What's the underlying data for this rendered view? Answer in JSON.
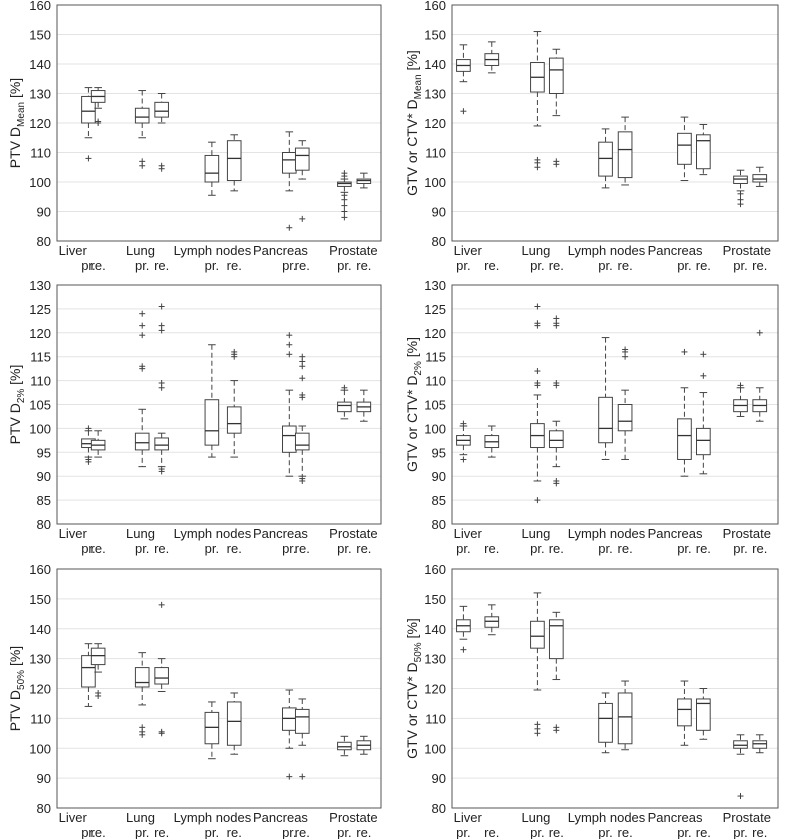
{
  "chart_data": [
    {
      "type": "box",
      "ylabel_main": "PTV D",
      "ylabel_sub": "Mean",
      "ylabel_tail": " [%]",
      "ylim": [
        80,
        160
      ],
      "yticks": [
        80,
        90,
        100,
        110,
        120,
        130,
        140,
        150,
        160
      ],
      "groups": [
        "Liver",
        "Lung",
        "Lymph nodes",
        "Pancreas",
        "Prostate"
      ],
      "sublabels": [
        "pr.",
        "re."
      ],
      "boxes": [
        {
          "group": "Liver",
          "sub": "pr.",
          "whisker_low": 115,
          "q1": 120,
          "median": 124,
          "q3": 129,
          "whisker_high": 132,
          "outliers": [
            108
          ]
        },
        {
          "group": "Liver",
          "sub": "re.",
          "whisker_low": 125,
          "q1": 127,
          "median": 129,
          "q3": 131,
          "whisker_high": 132,
          "outliers": [
            120.5,
            120
          ]
        },
        {
          "group": "Lung",
          "sub": "pr.",
          "whisker_low": 115,
          "q1": 120,
          "median": 122,
          "q3": 125,
          "whisker_high": 131,
          "outliers": [
            107,
            105.5
          ]
        },
        {
          "group": "Lung",
          "sub": "re.",
          "whisker_low": 120,
          "q1": 122,
          "median": 124,
          "q3": 127,
          "whisker_high": 130,
          "outliers": [
            105.5,
            104.5
          ]
        },
        {
          "group": "Lymph nodes",
          "sub": "pr.",
          "whisker_low": 95.5,
          "q1": 100,
          "median": 103,
          "q3": 109,
          "whisker_high": 113.5,
          "outliers": []
        },
        {
          "group": "Lymph nodes",
          "sub": "re.",
          "whisker_low": 97,
          "q1": 100.5,
          "median": 108,
          "q3": 114,
          "whisker_high": 116,
          "outliers": []
        },
        {
          "group": "Pancreas",
          "sub": "pr.",
          "whisker_low": 97,
          "q1": 103,
          "median": 107.5,
          "q3": 110,
          "whisker_high": 117,
          "outliers": [
            84.5
          ]
        },
        {
          "group": "Pancreas",
          "sub": "re.",
          "whisker_low": 101,
          "q1": 104,
          "median": 109,
          "q3": 111.5,
          "whisker_high": 114,
          "outliers": [
            87.5
          ]
        },
        {
          "group": "Prostate",
          "sub": "pr.",
          "whisker_low": 96.5,
          "q1": 98.5,
          "median": 99.5,
          "q3": 100,
          "whisker_high": 101,
          "outliers": [
            103,
            102,
            95.5,
            94,
            92,
            90,
            88
          ]
        },
        {
          "group": "Prostate",
          "sub": "re.",
          "whisker_low": 98,
          "q1": 99.5,
          "median": 100.5,
          "q3": 101,
          "whisker_high": 103,
          "outliers": []
        }
      ]
    },
    {
      "type": "box",
      "ylabel_main": "GTV or CTV* D",
      "ylabel_sub": "Mean",
      "ylabel_tail": " [%]",
      "ylim": [
        80,
        160
      ],
      "yticks": [
        80,
        90,
        100,
        110,
        120,
        130,
        140,
        150,
        160
      ],
      "groups": [
        "Liver",
        "Lung",
        "Lymph nodes",
        "Pancreas",
        "Prostate"
      ],
      "sublabels": [
        "pr.",
        "re."
      ],
      "boxes": [
        {
          "group": "Liver",
          "sub": "pr.",
          "whisker_low": 134,
          "q1": 137.5,
          "median": 139.5,
          "q3": 141.5,
          "whisker_high": 146.5,
          "outliers": [
            124
          ]
        },
        {
          "group": "Liver",
          "sub": "re.",
          "whisker_low": 137,
          "q1": 139.5,
          "median": 141.5,
          "q3": 143.5,
          "whisker_high": 147.5,
          "outliers": []
        },
        {
          "group": "Lung",
          "sub": "pr.",
          "whisker_low": 119,
          "q1": 130.5,
          "median": 135.5,
          "q3": 140.5,
          "whisker_high": 151,
          "outliers": [
            107.5,
            106.5,
            105
          ]
        },
        {
          "group": "Lung",
          "sub": "re.",
          "whisker_low": 122.5,
          "q1": 130,
          "median": 138,
          "q3": 142,
          "whisker_high": 145,
          "outliers": [
            107,
            106
          ]
        },
        {
          "group": "Lymph nodes",
          "sub": "pr.",
          "whisker_low": 98,
          "q1": 102,
          "median": 108,
          "q3": 113.5,
          "whisker_high": 118,
          "outliers": []
        },
        {
          "group": "Lymph nodes",
          "sub": "re.",
          "whisker_low": 99,
          "q1": 101.5,
          "median": 111,
          "q3": 117,
          "whisker_high": 122,
          "outliers": []
        },
        {
          "group": "Pancreas",
          "sub": "pr.",
          "whisker_low": 100.5,
          "q1": 106,
          "median": 112.5,
          "q3": 116.5,
          "whisker_high": 122,
          "outliers": []
        },
        {
          "group": "Pancreas",
          "sub": "re.",
          "whisker_low": 102.5,
          "q1": 104.5,
          "median": 114,
          "q3": 116,
          "whisker_high": 119.5,
          "outliers": []
        },
        {
          "group": "Prostate",
          "sub": "pr.",
          "whisker_low": 97,
          "q1": 99.5,
          "median": 101,
          "q3": 102,
          "whisker_high": 104,
          "outliers": [
            96,
            94,
            92.5
          ]
        },
        {
          "group": "Prostate",
          "sub": "re.",
          "whisker_low": 98.5,
          "q1": 100,
          "median": 101,
          "q3": 102.5,
          "whisker_high": 105,
          "outliers": []
        }
      ]
    },
    {
      "type": "box",
      "ylabel_main": "PTV D",
      "ylabel_sub": "2%",
      "ylabel_tail": " [%]",
      "ylim": [
        80,
        130
      ],
      "yticks": [
        80,
        85,
        90,
        95,
        100,
        105,
        110,
        115,
        120,
        125,
        130
      ],
      "groups": [
        "Liver",
        "Lung",
        "Lymph nodes",
        "Pancreas",
        "Prostate"
      ],
      "sublabels": [
        "pr.",
        "re."
      ],
      "boxes": [
        {
          "group": "Liver",
          "sub": "pr.",
          "whisker_low": 94,
          "q1": 96,
          "median": 96.8,
          "q3": 97.8,
          "whisker_high": 99.5,
          "outliers": [
            100,
            93.5,
            93
          ]
        },
        {
          "group": "Liver",
          "sub": "re.",
          "whisker_low": 94,
          "q1": 95.5,
          "median": 96.5,
          "q3": 97.5,
          "whisker_high": 99.5,
          "outliers": []
        },
        {
          "group": "Lung",
          "sub": "pr.",
          "whisker_low": 92,
          "q1": 95.5,
          "median": 97,
          "q3": 99,
          "whisker_high": 104,
          "outliers": [
            124,
            121.5,
            119.5,
            113,
            112.5
          ]
        },
        {
          "group": "Lung",
          "sub": "re.",
          "whisker_low": 92,
          "q1": 95.5,
          "median": 96.5,
          "q3": 98,
          "whisker_high": 99,
          "outliers": [
            125.5,
            121.5,
            120.5,
            109.5,
            108.5,
            91.5,
            91
          ]
        },
        {
          "group": "Lymph nodes",
          "sub": "pr.",
          "whisker_low": 94,
          "q1": 96.5,
          "median": 99.5,
          "q3": 106,
          "whisker_high": 117.5,
          "outliers": []
        },
        {
          "group": "Lymph nodes",
          "sub": "re.",
          "whisker_low": 94,
          "q1": 99,
          "median": 101,
          "q3": 104.5,
          "whisker_high": 110,
          "outliers": [
            116,
            115.5,
            115
          ]
        },
        {
          "group": "Pancreas",
          "sub": "pr.",
          "whisker_low": 90,
          "q1": 95,
          "median": 98.5,
          "q3": 100.5,
          "whisker_high": 108,
          "outliers": [
            119.5,
            117.5,
            115.5
          ]
        },
        {
          "group": "Pancreas",
          "sub": "re.",
          "whisker_low": 90,
          "q1": 95.5,
          "median": 96.5,
          "q3": 99,
          "whisker_high": 100.5,
          "outliers": [
            115,
            114,
            113,
            110.5,
            107,
            106.5,
            89.5,
            89
          ]
        },
        {
          "group": "Prostate",
          "sub": "pr.",
          "whisker_low": 102,
          "q1": 103.5,
          "median": 104.8,
          "q3": 105.5,
          "whisker_high": 108,
          "outliers": [
            108.5
          ]
        },
        {
          "group": "Prostate",
          "sub": "re.",
          "whisker_low": 101.5,
          "q1": 103.5,
          "median": 104.5,
          "q3": 105.5,
          "whisker_high": 108,
          "outliers": []
        }
      ]
    },
    {
      "type": "box",
      "ylabel_main": "GTV or CTV* D",
      "ylabel_sub": "2%",
      "ylabel_tail": " [%]",
      "ylim": [
        80,
        130
      ],
      "yticks": [
        80,
        85,
        90,
        95,
        100,
        105,
        110,
        115,
        120,
        125,
        130
      ],
      "groups": [
        "Liver",
        "Lung",
        "Lymph nodes",
        "Pancreas",
        "Prostate"
      ],
      "sublabels": [
        "pr.",
        "re."
      ],
      "boxes": [
        {
          "group": "Liver",
          "sub": "pr.",
          "whisker_low": 94.5,
          "q1": 96.5,
          "median": 97.5,
          "q3": 98.5,
          "whisker_high": 100.5,
          "outliers": [
            101,
            93.5
          ]
        },
        {
          "group": "Liver",
          "sub": "re.",
          "whisker_low": 94,
          "q1": 96,
          "median": 97.2,
          "q3": 98.5,
          "whisker_high": 100.5,
          "outliers": []
        },
        {
          "group": "Lung",
          "sub": "pr.",
          "whisker_low": 89,
          "q1": 96,
          "median": 98.5,
          "q3": 101,
          "whisker_high": 107,
          "outliers": [
            125.5,
            122,
            121.5,
            112,
            109.5,
            109,
            85
          ]
        },
        {
          "group": "Lung",
          "sub": "re.",
          "whisker_low": 92,
          "q1": 96,
          "median": 97.5,
          "q3": 99.5,
          "whisker_high": 101.5,
          "outliers": [
            123,
            122,
            121.5,
            109.5,
            109,
            89,
            88.5
          ]
        },
        {
          "group": "Lymph nodes",
          "sub": "pr.",
          "whisker_low": 93.5,
          "q1": 97,
          "median": 100,
          "q3": 106.5,
          "whisker_high": 119,
          "outliers": []
        },
        {
          "group": "Lymph nodes",
          "sub": "re.",
          "whisker_low": 93.5,
          "q1": 99.5,
          "median": 101.5,
          "q3": 105,
          "whisker_high": 108,
          "outliers": [
            116.5,
            116,
            115
          ]
        },
        {
          "group": "Pancreas",
          "sub": "pr.",
          "whisker_low": 90,
          "q1": 93.5,
          "median": 98.5,
          "q3": 102,
          "whisker_high": 108.5,
          "outliers": [
            116
          ]
        },
        {
          "group": "Pancreas",
          "sub": "re.",
          "whisker_low": 90.5,
          "q1": 94.5,
          "median": 97.5,
          "q3": 100,
          "whisker_high": 107.5,
          "outliers": [
            115.5,
            111
          ]
        },
        {
          "group": "Prostate",
          "sub": "pr.",
          "whisker_low": 102.5,
          "q1": 103.5,
          "median": 104.8,
          "q3": 106,
          "whisker_high": 108.5,
          "outliers": [
            109
          ]
        },
        {
          "group": "Prostate",
          "sub": "re.",
          "whisker_low": 101.5,
          "q1": 103.5,
          "median": 104.8,
          "q3": 106,
          "whisker_high": 108.5,
          "outliers": [
            120
          ]
        }
      ]
    },
    {
      "type": "box",
      "ylabel_main": "PTV D",
      "ylabel_sub": "50%",
      "ylabel_tail": " [%]",
      "ylim": [
        80,
        160
      ],
      "yticks": [
        80,
        90,
        100,
        110,
        120,
        130,
        140,
        150,
        160
      ],
      "groups": [
        "Liver",
        "Lung",
        "Lymph nodes",
        "Pancreas",
        "Prostate"
      ],
      "sublabels": [
        "pr.",
        "re."
      ],
      "boxes": [
        {
          "group": "Liver",
          "sub": "pr.",
          "whisker_low": 114,
          "q1": 120.5,
          "median": 127,
          "q3": 131,
          "whisker_high": 135,
          "outliers": []
        },
        {
          "group": "Liver",
          "sub": "re.",
          "whisker_low": 125.5,
          "q1": 128,
          "median": 131,
          "q3": 133.5,
          "whisker_high": 135,
          "outliers": [
            118.5,
            117.5
          ]
        },
        {
          "group": "Lung",
          "sub": "pr.",
          "whisker_low": 114.5,
          "q1": 120.5,
          "median": 122,
          "q3": 127,
          "whisker_high": 132,
          "outliers": [
            107,
            105.5,
            104.5
          ]
        },
        {
          "group": "Lung",
          "sub": "re.",
          "whisker_low": 119,
          "q1": 121.5,
          "median": 123.5,
          "q3": 127,
          "whisker_high": 130,
          "outliers": [
            148,
            105.5,
            105
          ]
        },
        {
          "group": "Lymph nodes",
          "sub": "pr.",
          "whisker_low": 96.5,
          "q1": 101.5,
          "median": 107,
          "q3": 112,
          "whisker_high": 115.5,
          "outliers": []
        },
        {
          "group": "Lymph nodes",
          "sub": "re.",
          "whisker_low": 98,
          "q1": 101,
          "median": 109,
          "q3": 115.5,
          "whisker_high": 118.5,
          "outliers": []
        },
        {
          "group": "Pancreas",
          "sub": "pr.",
          "whisker_low": 100,
          "q1": 106,
          "median": 110,
          "q3": 113.5,
          "whisker_high": 119.5,
          "outliers": [
            90.5
          ]
        },
        {
          "group": "Pancreas",
          "sub": "re.",
          "whisker_low": 101,
          "q1": 105,
          "median": 110.5,
          "q3": 113,
          "whisker_high": 116.5,
          "outliers": [
            90.5
          ]
        },
        {
          "group": "Prostate",
          "sub": "pr.",
          "whisker_low": 97.5,
          "q1": 99.5,
          "median": 100.5,
          "q3": 102,
          "whisker_high": 104,
          "outliers": []
        },
        {
          "group": "Prostate",
          "sub": "re.",
          "whisker_low": 98,
          "q1": 99.5,
          "median": 101,
          "q3": 102.5,
          "whisker_high": 104,
          "outliers": []
        }
      ]
    },
    {
      "type": "box",
      "ylabel_main": "GTV or CTV* D",
      "ylabel_sub": "50%",
      "ylabel_tail": " [%]",
      "ylim": [
        80,
        160
      ],
      "yticks": [
        80,
        90,
        100,
        110,
        120,
        130,
        140,
        150,
        160
      ],
      "groups": [
        "Liver",
        "Lung",
        "Lymph nodes",
        "Pancreas",
        "Prostate"
      ],
      "sublabels": [
        "pr.",
        "re."
      ],
      "boxes": [
        {
          "group": "Liver",
          "sub": "pr.",
          "whisker_low": 136.5,
          "q1": 139,
          "median": 141,
          "q3": 143,
          "whisker_high": 147.5,
          "outliers": [
            133
          ]
        },
        {
          "group": "Liver",
          "sub": "re.",
          "whisker_low": 138,
          "q1": 140.5,
          "median": 142.5,
          "q3": 144,
          "whisker_high": 148,
          "outliers": []
        },
        {
          "group": "Lung",
          "sub": "pr.",
          "whisker_low": 119.5,
          "q1": 133.5,
          "median": 137.5,
          "q3": 142.5,
          "whisker_high": 152,
          "outliers": [
            108,
            106.5,
            105
          ]
        },
        {
          "group": "Lung",
          "sub": "re.",
          "whisker_low": 123,
          "q1": 130,
          "median": 141,
          "q3": 143,
          "whisker_high": 145.5,
          "outliers": [
            107,
            106
          ]
        },
        {
          "group": "Lymph nodes",
          "sub": "pr.",
          "whisker_low": 98.5,
          "q1": 102,
          "median": 110,
          "q3": 115,
          "whisker_high": 118.5,
          "outliers": []
        },
        {
          "group": "Lymph nodes",
          "sub": "re.",
          "whisker_low": 99.5,
          "q1": 101.5,
          "median": 110.5,
          "q3": 118.5,
          "whisker_high": 122.5,
          "outliers": []
        },
        {
          "group": "Pancreas",
          "sub": "pr.",
          "whisker_low": 101,
          "q1": 107.5,
          "median": 113,
          "q3": 116.5,
          "whisker_high": 122.5,
          "outliers": []
        },
        {
          "group": "Pancreas",
          "sub": "re.",
          "whisker_low": 103,
          "q1": 106,
          "median": 115,
          "q3": 116.5,
          "whisker_high": 120,
          "outliers": []
        },
        {
          "group": "Prostate",
          "sub": "pr.",
          "whisker_low": 98,
          "q1": 100,
          "median": 101,
          "q3": 102.5,
          "whisker_high": 104.5,
          "outliers": [
            84
          ]
        },
        {
          "group": "Prostate",
          "sub": "re.",
          "whisker_low": 98.5,
          "q1": 100,
          "median": 101.5,
          "q3": 102.5,
          "whisker_high": 104.5,
          "outliers": []
        }
      ]
    }
  ]
}
